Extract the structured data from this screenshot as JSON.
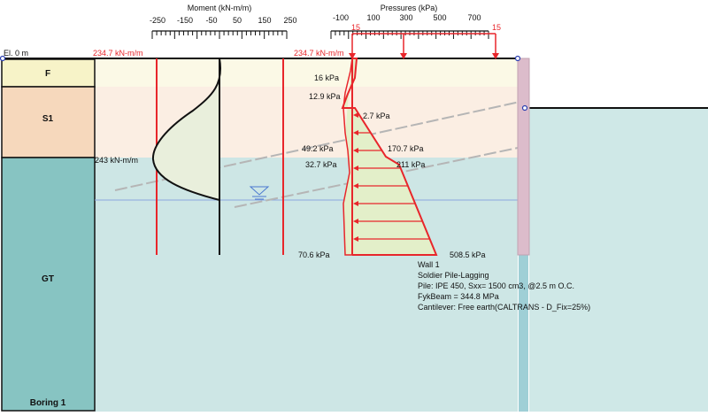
{
  "elevation_label": "El. 0 m",
  "boring": {
    "name": "Boring 1",
    "layers": [
      {
        "name": "F",
        "color": "#f7f3c8"
      },
      {
        "name": "S1",
        "color": "#f6d8bc"
      },
      {
        "name": "GT",
        "color": "#87c4c2"
      }
    ]
  },
  "zone_colors": {
    "f": "#fbf9e6",
    "s1": "#fbeee3",
    "gt": "#cde6e5",
    "right_soil": "#cfe8e7"
  },
  "moment": {
    "title": "Moment (kN-m/m)",
    "tick_labels": [
      "-250",
      "-150",
      "-50",
      "50",
      "150",
      "250"
    ],
    "limit_left_label": "234.7 kN-m/m",
    "limit_right_label": "234.7 kN-m/m",
    "max_label": "243 kN-m/m"
  },
  "pressures": {
    "title": "Pressures (kPa)",
    "tick_labels": [
      "-100",
      "100",
      "300",
      "500",
      "700"
    ],
    "load_left_label": "15",
    "load_right_label": "15",
    "labels": {
      "p16": "16 kPa",
      "p12_9": "12.9 kPa",
      "p2_7": "2.7 kPa",
      "p49_2": "49.2 kPa",
      "p170_7": "170.7 kPa",
      "p32_7": "32.7 kPa",
      "p211": "211 kPa",
      "p70_6": "70.6 kPa",
      "p508_5": "508.5 kPa"
    }
  },
  "wall_info": [
    "Wall 1",
    "Soldier Pile-Lagging",
    "Pile: IPE 450, Sxx= 1500 cm3, @2.5 m O.C.",
    "FykBeam = 344.8 MPa",
    "Cantilever:  Free earth(CALTRANS - D_Fix=25%)"
  ],
  "colors": {
    "red": "#e8262b",
    "black": "#111111",
    "blue_line": "#8aa6e0",
    "wall": "#dcbccb"
  }
}
